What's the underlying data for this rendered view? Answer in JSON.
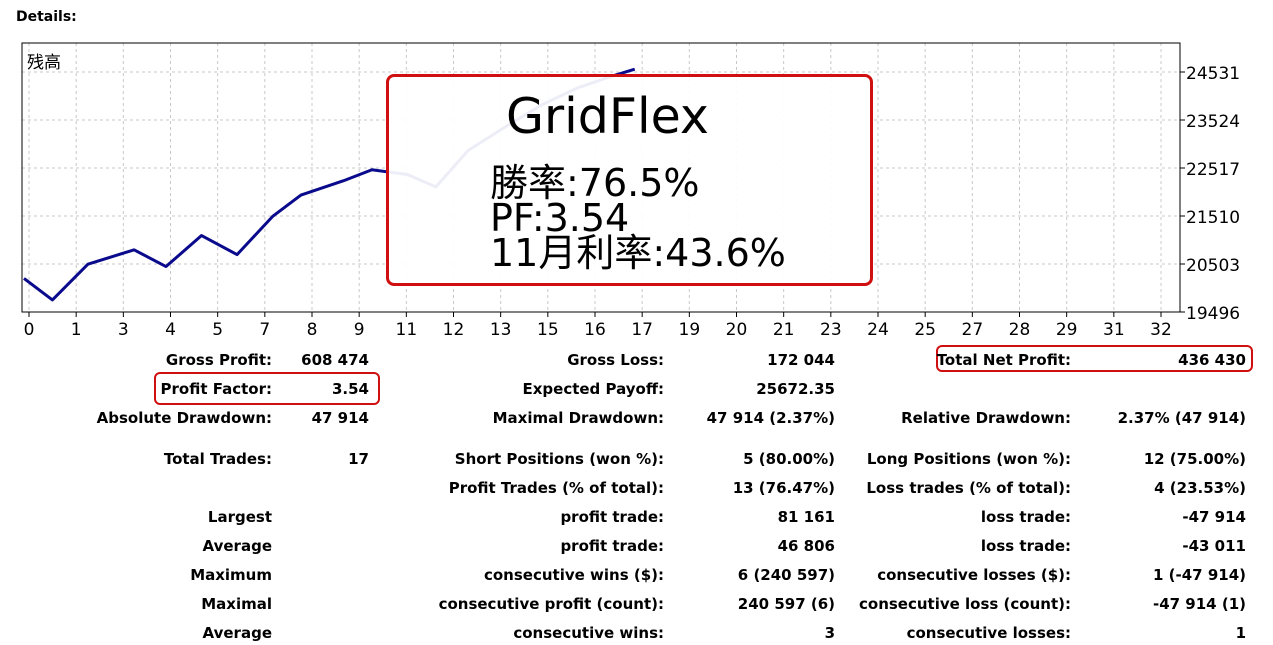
{
  "details_label": "Details:",
  "chart_data": {
    "type": "line",
    "title": "残高",
    "x_ticks": [
      "0",
      "1",
      "3",
      "4",
      "5",
      "7",
      "8",
      "9",
      "11",
      "12",
      "13",
      "15",
      "16",
      "17",
      "19",
      "20",
      "21",
      "23",
      "24",
      "25",
      "27",
      "28",
      "29",
      "31",
      "32"
    ],
    "y_ticks": [
      "24531",
      "23524",
      "22517",
      "21510",
      "20503",
      "19496"
    ],
    "y_tick_values": [
      24531,
      23524,
      22517,
      21510,
      20503,
      19496
    ],
    "series": [
      {
        "x": [
          0,
          0.8,
          1.8,
          3.1,
          4,
          5,
          6,
          7,
          7.8,
          9,
          9.8,
          10.8,
          11.6,
          12.5,
          13.6,
          14.6,
          15.6,
          16.5,
          17.2
        ],
        "y": [
          20200,
          19750,
          20500,
          20800,
          20450,
          21100,
          20700,
          21500,
          21950,
          22250,
          22480,
          22380,
          22120,
          22880,
          23400,
          23850,
          24200,
          24430,
          24590
        ]
      }
    ],
    "ylim": [
      19496,
      25000
    ],
    "xlim": [
      0,
      32.5
    ],
    "grid": true,
    "line_color": "#0a0a8c"
  },
  "overlay": {
    "title": "GridFlex",
    "lines": [
      "勝率:76.5%",
      "PF:3.54",
      "11月利率:43.6%"
    ]
  },
  "stats": {
    "gross_profit_label": "Gross Profit:",
    "gross_profit": "608 474",
    "gross_loss_label": "Gross Loss:",
    "gross_loss": "172 044",
    "total_net_profit_label": "Total Net Profit:",
    "total_net_profit": "436 430",
    "profit_factor_label": "Profit Factor:",
    "profit_factor": "3.54",
    "expected_payoff_label": "Expected Payoff:",
    "expected_payoff": "25672.35",
    "absolute_drawdown_label": "Absolute Drawdown:",
    "absolute_drawdown": "47 914",
    "maximal_drawdown_label": "Maximal Drawdown:",
    "maximal_drawdown": "47 914 (2.37%)",
    "relative_drawdown_label": "Relative Drawdown:",
    "relative_drawdown": "2.37% (47 914)",
    "total_trades_label": "Total Trades:",
    "total_trades": "17",
    "short_positions_label": "Short Positions (won %):",
    "short_positions": "5 (80.00%)",
    "long_positions_label": "Long Positions (won %):",
    "long_positions": "12 (75.00%)",
    "profit_trades_label": "Profit Trades (% of total):",
    "profit_trades": "13 (76.47%)",
    "loss_trades_label": "Loss trades (% of total):",
    "loss_trades": "4 (23.53%)",
    "largest_label": "Largest",
    "largest_profit_label": "profit trade:",
    "largest_profit": "81 161",
    "largest_loss_label": "loss trade:",
    "largest_loss": "-47 914",
    "average_label": "Average",
    "average_profit_label": "profit trade:",
    "average_profit": "46 806",
    "average_loss_label": "loss trade:",
    "average_loss": "-43 011",
    "maximum_label": "Maximum",
    "max_consec_wins_label": "consecutive wins ($):",
    "max_consec_wins": "6 (240 597)",
    "max_consec_losses_label": "consecutive losses ($):",
    "max_consec_losses": "1 (-47 914)",
    "maximal_label": "Maximal",
    "maximal_consec_profit_label": "consecutive profit (count):",
    "maximal_consec_profit": "240 597 (6)",
    "maximal_consec_loss_label": "consecutive loss (count):",
    "maximal_consec_loss": "-47 914 (1)",
    "average2_label": "Average",
    "avg_consec_wins_label": "consecutive wins:",
    "avg_consec_wins": "3",
    "avg_consec_losses_label": "consecutive losses:",
    "avg_consec_losses": "1"
  }
}
